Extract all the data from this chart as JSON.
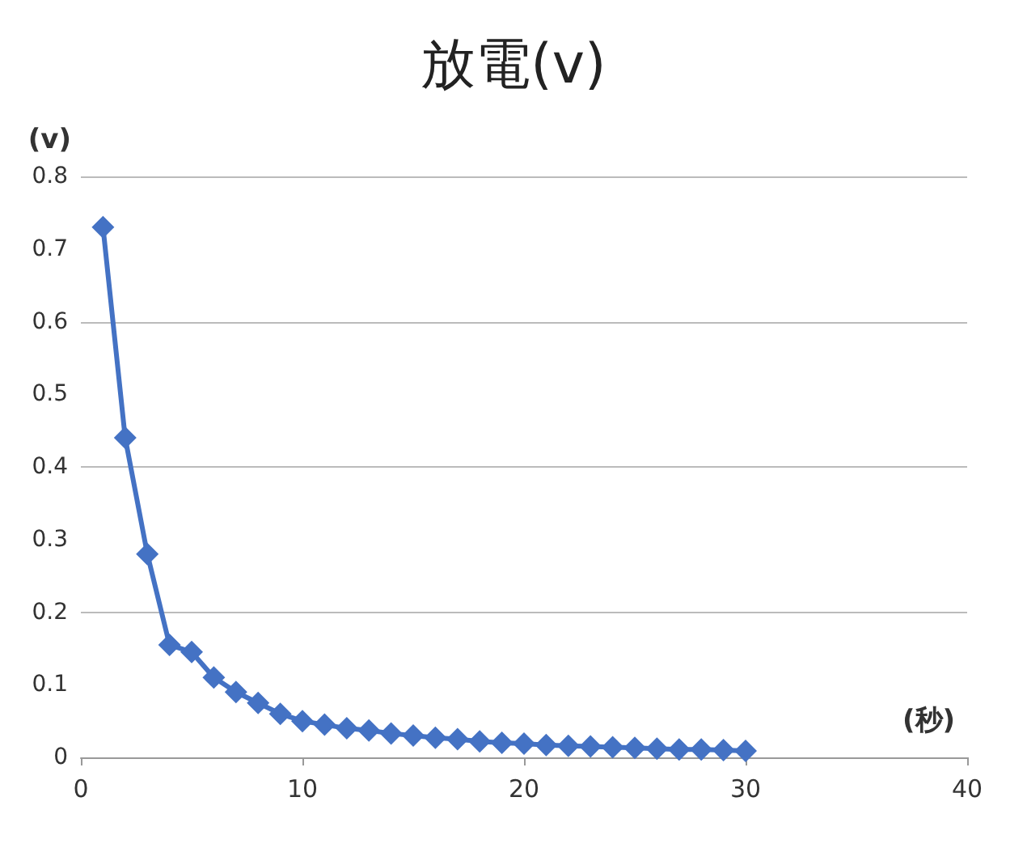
{
  "chart_data": {
    "type": "line",
    "title": "放電(v)",
    "xlabel": "(秒)",
    "ylabel": "(v)",
    "x": [
      1,
      2,
      3,
      4,
      5,
      6,
      7,
      8,
      9,
      10,
      11,
      12,
      13,
      14,
      15,
      16,
      17,
      18,
      19,
      20,
      21,
      22,
      23,
      24,
      25,
      26,
      27,
      28,
      29,
      30
    ],
    "series": [
      {
        "color": "#4472c4",
        "values": [
          0.73,
          0.44,
          0.28,
          0.155,
          0.145,
          0.11,
          0.09,
          0.075,
          0.06,
          0.05,
          0.045,
          0.04,
          0.037,
          0.033,
          0.03,
          0.027,
          0.025,
          0.022,
          0.02,
          0.019,
          0.017,
          0.016,
          0.015,
          0.014,
          0.013,
          0.012,
          0.011,
          0.011,
          0.01,
          0.009
        ]
      }
    ],
    "xlim": [
      0,
      40
    ],
    "xticks": [
      0,
      10,
      20,
      30,
      40
    ],
    "ylim": [
      0,
      0.8
    ],
    "yticks": [
      0,
      0.1,
      0.2,
      0.3,
      0.4,
      0.5,
      0.6,
      0.7,
      0.8
    ],
    "grid": "y",
    "marker": "diamond",
    "line_style": "solid"
  }
}
